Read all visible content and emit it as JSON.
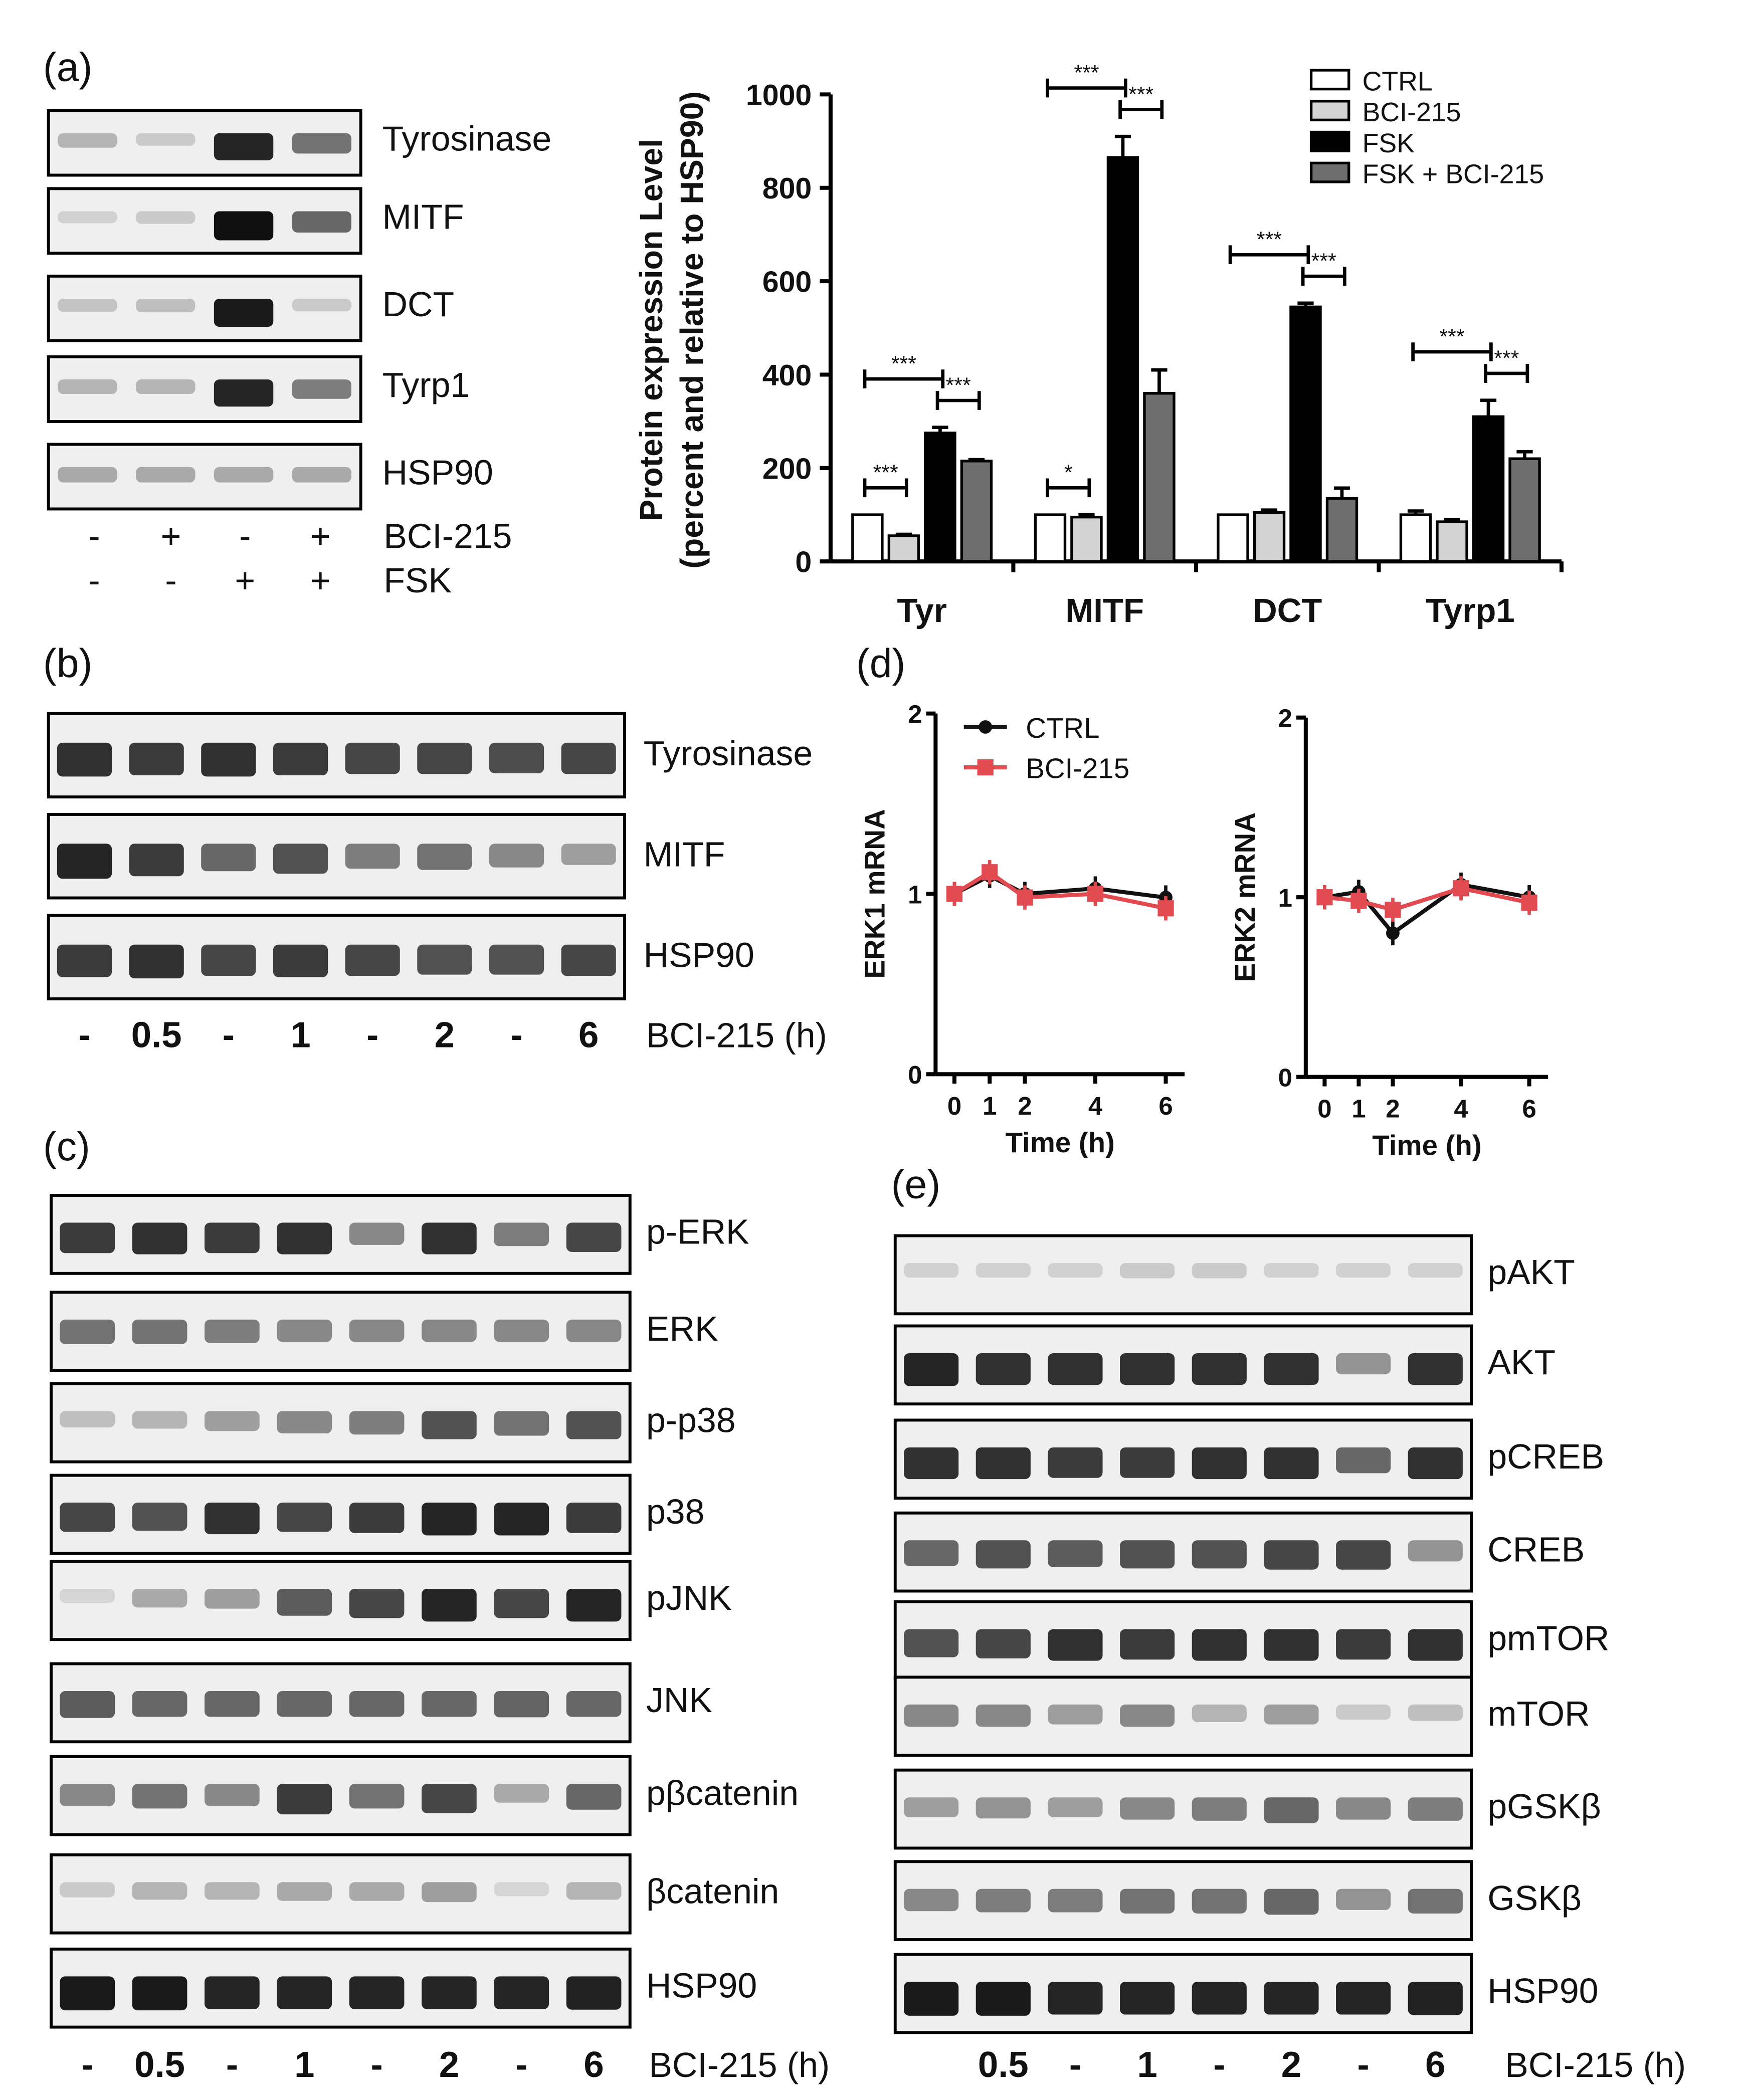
{
  "panels": {
    "a": {
      "label": "(a)",
      "blot_labels": [
        "Tyrosinase",
        "MITF",
        "DCT",
        "Tyrp1",
        "HSP90"
      ],
      "blot_intensities": [
        [
          0.25,
          0.15,
          0.9,
          0.55
        ],
        [
          0.12,
          0.15,
          1.0,
          0.6
        ],
        [
          0.18,
          0.2,
          0.95,
          0.15
        ],
        [
          0.25,
          0.25,
          0.9,
          0.5
        ],
        [
          0.3,
          0.3,
          0.3,
          0.3
        ]
      ],
      "treatment_rows": [
        {
          "name": "BCI-215",
          "signs": [
            "-",
            "+",
            "-",
            "+"
          ]
        },
        {
          "name": "FSK",
          "signs": [
            "-",
            "-",
            "+",
            "+"
          ]
        }
      ]
    },
    "b": {
      "label": "(b)",
      "blot_labels": [
        "Tyrosinase",
        "MITF",
        "HSP90"
      ],
      "blot_intensities": [
        [
          0.85,
          0.8,
          0.85,
          0.8,
          0.75,
          0.75,
          0.72,
          0.75
        ],
        [
          0.9,
          0.8,
          0.6,
          0.7,
          0.5,
          0.55,
          0.45,
          0.35
        ],
        [
          0.8,
          0.85,
          0.75,
          0.8,
          0.75,
          0.7,
          0.7,
          0.75
        ]
      ],
      "time_labels": [
        "-",
        "0.5",
        "-",
        "1",
        "-",
        "2",
        "-",
        "6"
      ],
      "axis_title": "BCI-215 (h)"
    },
    "c": {
      "label": "(c)",
      "blot_labels": [
        "p-ERK",
        "ERK",
        "p-p38",
        "p38",
        "pJNK",
        "JNK",
        "pβcatenin",
        "βcatenin",
        "HSP90"
      ],
      "blot_intensities": [
        [
          0.8,
          0.85,
          0.8,
          0.85,
          0.45,
          0.85,
          0.5,
          0.75
        ],
        [
          0.55,
          0.55,
          0.5,
          0.45,
          0.45,
          0.45,
          0.45,
          0.45
        ],
        [
          0.2,
          0.25,
          0.35,
          0.45,
          0.5,
          0.7,
          0.55,
          0.7
        ],
        [
          0.75,
          0.7,
          0.85,
          0.75,
          0.8,
          0.9,
          0.9,
          0.8
        ],
        [
          0.1,
          0.3,
          0.35,
          0.65,
          0.75,
          0.9,
          0.75,
          0.9
        ],
        [
          0.65,
          0.6,
          0.6,
          0.6,
          0.6,
          0.6,
          0.62,
          0.6
        ],
        [
          0.45,
          0.55,
          0.45,
          0.8,
          0.55,
          0.75,
          0.3,
          0.6
        ],
        [
          0.15,
          0.25,
          0.25,
          0.3,
          0.3,
          0.35,
          0.1,
          0.25
        ],
        [
          0.95,
          0.95,
          0.9,
          0.9,
          0.9,
          0.9,
          0.9,
          0.92
        ]
      ],
      "time_labels": [
        "-",
        "0.5",
        "-",
        "1",
        "-",
        "2",
        "-",
        "6"
      ],
      "axis_title": "BCI-215 (h)"
    },
    "d": {
      "label": "(d)"
    },
    "e": {
      "label": "(e)",
      "blot_labels": [
        "pAKT",
        "AKT",
        "pCREB",
        "CREB",
        "pmTOR",
        "mTOR",
        "pGSKβ",
        "GSKβ",
        "HSP90"
      ],
      "blot_intensities": [
        [
          0.12,
          0.12,
          0.12,
          0.15,
          0.15,
          0.12,
          0.12,
          0.12
        ],
        [
          0.9,
          0.85,
          0.85,
          0.85,
          0.85,
          0.85,
          0.4,
          0.85
        ],
        [
          0.85,
          0.85,
          0.8,
          0.8,
          0.85,
          0.85,
          0.6,
          0.85
        ],
        [
          0.6,
          0.7,
          0.65,
          0.7,
          0.7,
          0.75,
          0.75,
          0.4
        ],
        [
          0.7,
          0.75,
          0.85,
          0.8,
          0.85,
          0.85,
          0.8,
          0.85
        ],
        [
          0.45,
          0.45,
          0.35,
          0.45,
          0.25,
          0.35,
          0.15,
          0.2
        ],
        [
          0.35,
          0.4,
          0.35,
          0.45,
          0.5,
          0.6,
          0.45,
          0.5
        ],
        [
          0.45,
          0.5,
          0.5,
          0.55,
          0.55,
          0.6,
          0.4,
          0.55
        ],
        [
          0.95,
          0.95,
          0.9,
          0.9,
          0.9,
          0.9,
          0.9,
          0.92
        ]
      ],
      "time_labels": [
        "",
        "0.5",
        "-",
        "1",
        "-",
        "2",
        "-",
        "6"
      ],
      "axis_title": "BCI-215 (h)"
    }
  },
  "colors": {
    "ctrl": "#ffffff",
    "bci": "#d3d3d3",
    "fsk": "#000000",
    "fsk_bci": "#6e6e6e",
    "line_ctrl": "#111111",
    "line_bci": "#e04a50"
  },
  "chart_data": [
    {
      "type": "bar",
      "categories": [
        "Tyr",
        "MITF",
        "DCT",
        "Tyrp1"
      ],
      "ylabel": "Protein expression Level\n(percent and relative to HSP90)",
      "ylim": [
        0,
        1000
      ],
      "yticks": [
        0,
        200,
        400,
        600,
        800,
        1000
      ],
      "series": [
        {
          "name": "CTRL",
          "values": [
            100,
            100,
            100,
            100
          ],
          "errors": [
            0,
            0,
            0,
            8
          ]
        },
        {
          "name": "BCI-215",
          "values": [
            55,
            95,
            105,
            85
          ],
          "errors": [
            3,
            5,
            5,
            5
          ]
        },
        {
          "name": "FSK",
          "values": [
            275,
            865,
            545,
            310
          ],
          "errors": [
            12,
            45,
            8,
            35
          ]
        },
        {
          "name": "FSK + BCI-215",
          "values": [
            215,
            360,
            135,
            220
          ],
          "errors": [
            3,
            50,
            22,
            15
          ]
        }
      ],
      "significance": [
        {
          "category": 0,
          "from": 0,
          "to": 1,
          "label": "***"
        },
        {
          "category": 0,
          "from": 0,
          "to": 2,
          "label": "***"
        },
        {
          "category": 0,
          "from": 2,
          "to": 3,
          "label": "***"
        },
        {
          "category": 1,
          "from": 0,
          "to": 1,
          "label": "*"
        },
        {
          "category": 1,
          "from": 0,
          "to": 2,
          "label": "***"
        },
        {
          "category": 1,
          "from": 2,
          "to": 3,
          "label": "***"
        },
        {
          "category": 2,
          "from": 0,
          "to": 2,
          "label": "***"
        },
        {
          "category": 2,
          "from": 2,
          "to": 3,
          "label": "***"
        },
        {
          "category": 3,
          "from": 0,
          "to": 2,
          "label": "***"
        },
        {
          "category": 3,
          "from": 2,
          "to": 3,
          "label": "***"
        }
      ],
      "legend": "top-right"
    },
    {
      "type": "line",
      "x": [
        0,
        1,
        2,
        4,
        6
      ],
      "xticks": [
        0,
        1,
        2,
        4,
        6
      ],
      "xlabel": "Time (h)",
      "ylabel": "ERK1 mRNA",
      "ylim": [
        0,
        2
      ],
      "yticks": [
        0,
        1,
        2
      ],
      "series": [
        {
          "name": "CTRL",
          "values": [
            1.0,
            1.1,
            1.0,
            1.03,
            0.98
          ]
        },
        {
          "name": "BCI-215",
          "values": [
            1.0,
            1.12,
            0.98,
            1.0,
            0.92
          ]
        }
      ],
      "legend": "top-left"
    },
    {
      "type": "line",
      "x": [
        0,
        1,
        2,
        4,
        6
      ],
      "xticks": [
        0,
        1,
        2,
        4,
        6
      ],
      "xlabel": "Time (h)",
      "ylabel": "ERK2 mRNA",
      "ylim": [
        0,
        2
      ],
      "yticks": [
        0,
        1,
        2
      ],
      "series": [
        {
          "values": [
            1.0,
            1.03,
            0.8,
            1.07,
            1.0
          ]
        },
        {
          "values": [
            1.0,
            0.98,
            0.93,
            1.05,
            0.97
          ]
        }
      ]
    }
  ]
}
